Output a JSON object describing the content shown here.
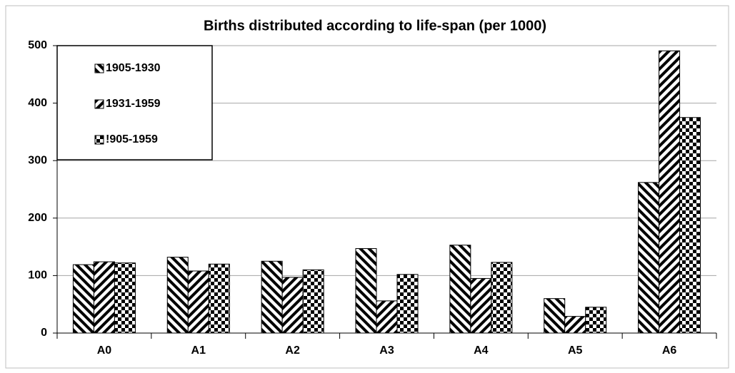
{
  "chart_data": {
    "type": "bar",
    "title": "Births distributed according to life-span (per 1000)",
    "categories": [
      "A0",
      "A1",
      "A2",
      "A3",
      "A4",
      "A5",
      "A6"
    ],
    "series": [
      {
        "name": "1905-1930",
        "color": "#000000",
        "pattern": "diagonal-down",
        "values": [
          119,
          132,
          125,
          147,
          153,
          60,
          262
        ]
      },
      {
        "name": "1931-1959",
        "color": "#000000",
        "pattern": "diagonal-up",
        "values": [
          124,
          108,
          97,
          56,
          95,
          29,
          491
        ]
      },
      {
        "name": "!905-1959",
        "color": "#000000",
        "pattern": "checker",
        "values": [
          122,
          120,
          110,
          102,
          123,
          45,
          375
        ]
      }
    ],
    "ylim": [
      0,
      500
    ],
    "yticks": [
      0,
      100,
      200,
      300,
      400,
      500
    ],
    "grid": true,
    "legend": "upper left"
  }
}
